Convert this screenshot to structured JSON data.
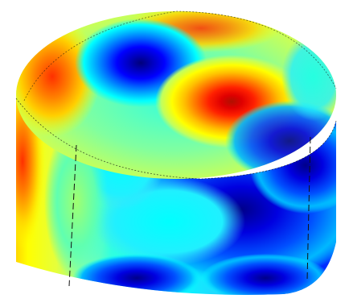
{
  "figure": {
    "subject": "cylinder-colormap-surface",
    "colormap": [
      "#00008f",
      "#0000ff",
      "#0080ff",
      "#00ffff",
      "#80ff80",
      "#ffff00",
      "#ff8000",
      "#ff0000",
      "#800000"
    ],
    "background": "#ffffff",
    "edge_color": "#111111"
  }
}
